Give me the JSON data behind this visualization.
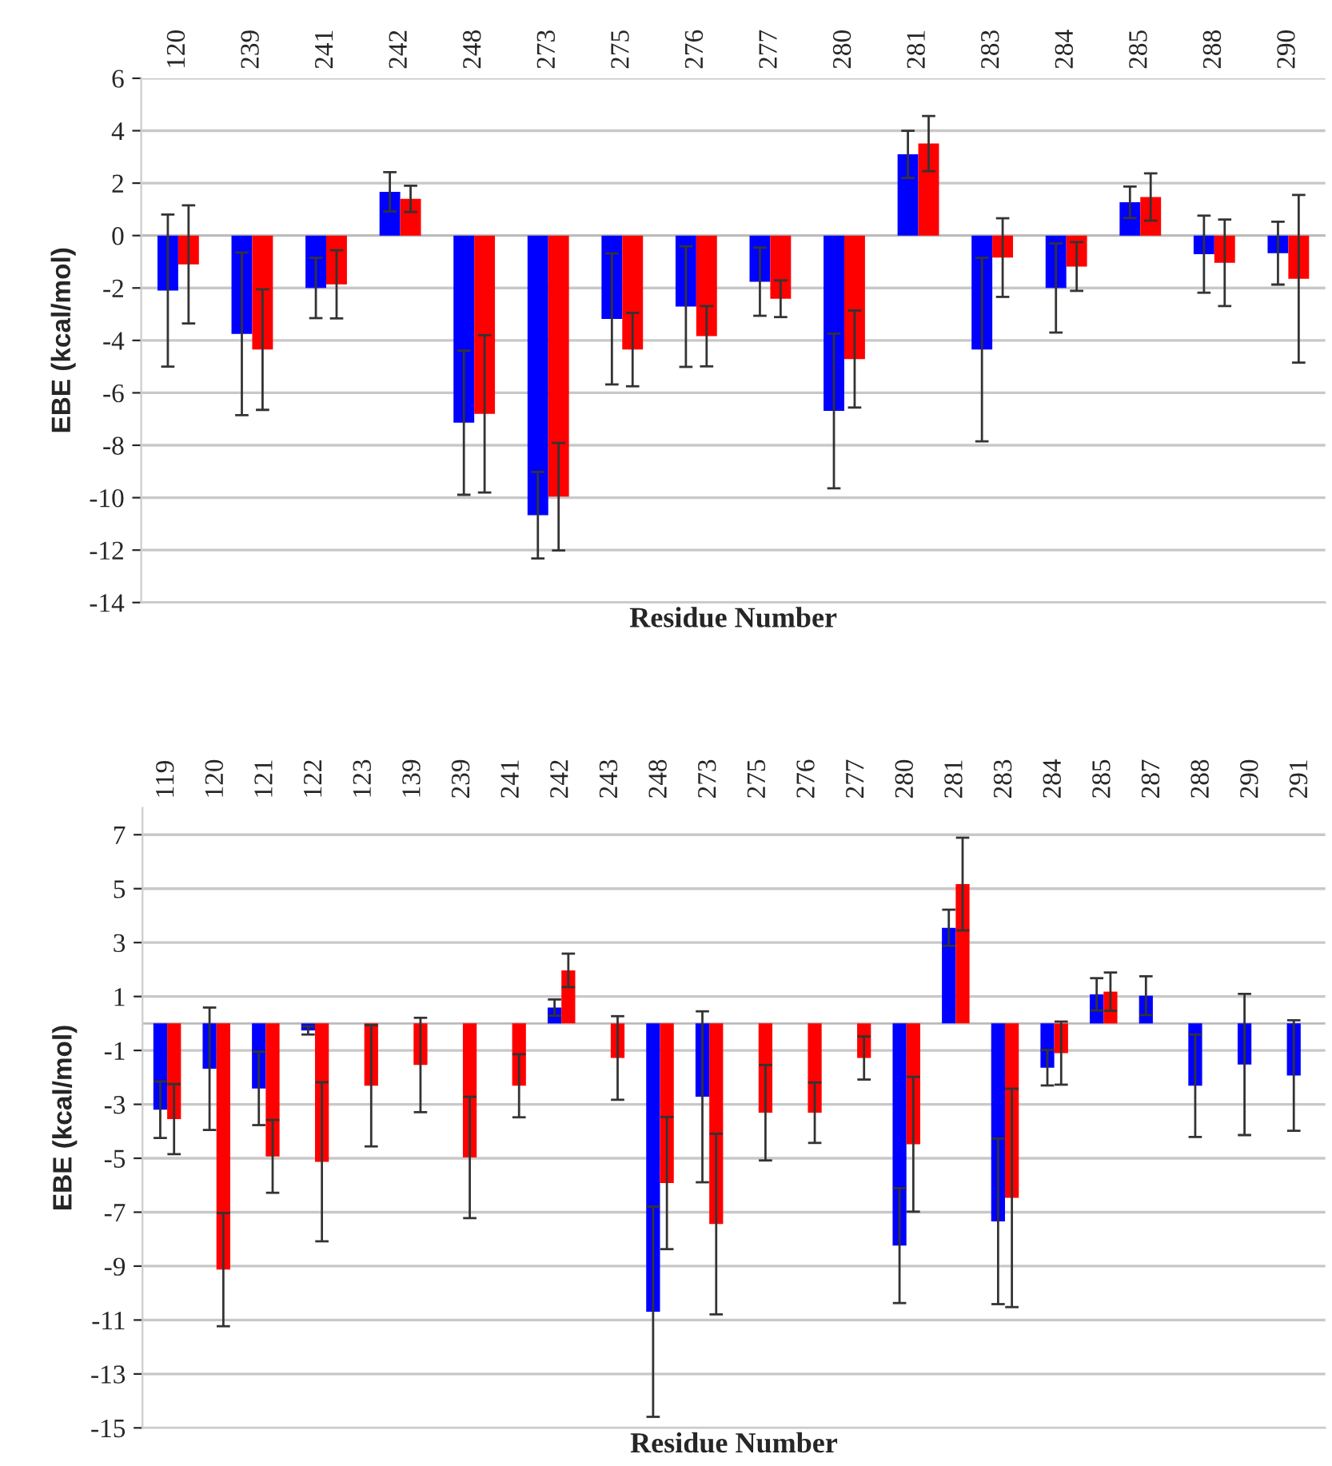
{
  "chart_data": [
    {
      "type": "bar",
      "xlabel": "Residue Number",
      "ylabel": "EBE (kcal/mol)",
      "categories": [
        "120",
        "239",
        "241",
        "242",
        "248",
        "273",
        "275",
        "276",
        "277",
        "280",
        "281",
        "283",
        "284",
        "285",
        "288",
        "290"
      ],
      "series": [
        {
          "color": "#0000ff",
          "values": [
            -2.1,
            -3.75,
            -2.0,
            1.67,
            -7.14,
            -10.67,
            -3.18,
            -2.71,
            -1.76,
            -6.69,
            3.1,
            -4.35,
            -2.0,
            1.27,
            -0.71,
            -0.67
          ],
          "errors": [
            2.9,
            3.1,
            1.15,
            0.75,
            2.75,
            1.65,
            2.5,
            2.3,
            1.3,
            2.95,
            0.9,
            3.5,
            1.7,
            0.6,
            1.47,
            1.2
          ]
        },
        {
          "color": "#ff0000",
          "values": [
            -1.1,
            -4.35,
            -1.86,
            1.4,
            -6.8,
            -9.96,
            -4.35,
            -3.84,
            -2.41,
            -4.71,
            3.51,
            -0.84,
            -1.18,
            1.47,
            -1.04,
            -1.65
          ],
          "errors": [
            2.25,
            2.3,
            1.3,
            0.5,
            3.0,
            2.05,
            1.4,
            1.15,
            0.7,
            1.85,
            1.05,
            1.5,
            0.93,
            0.9,
            1.65,
            3.2
          ]
        }
      ],
      "ylim": [
        -14,
        6
      ],
      "yticks": [
        -14,
        -12,
        -10,
        -8,
        -6,
        -4,
        -2,
        0,
        2,
        4,
        6
      ],
      "grid": "y"
    },
    {
      "type": "bar",
      "xlabel": "Residue Number",
      "ylabel": "EBE (kcal/mol)",
      "categories": [
        "119",
        "120",
        "121",
        "122",
        "123",
        "139",
        "239",
        "241",
        "242",
        "243",
        "248",
        "273",
        "275",
        "276",
        "277",
        "280",
        "281",
        "283",
        "284",
        "285",
        "287",
        "288",
        "290",
        "291"
      ],
      "series": [
        {
          "color": "#0000ff",
          "values": [
            -3.2,
            -1.68,
            -2.41,
            -0.26,
            0,
            0,
            0,
            0,
            0.59,
            0,
            -10.69,
            -2.72,
            0,
            0,
            0,
            -8.24,
            3.55,
            -7.34,
            -1.64,
            1.08,
            1.03,
            -2.31,
            -1.52,
            -1.93
          ],
          "errors": [
            1.05,
            2.27,
            1.36,
            0.15,
            null,
            null,
            null,
            null,
            0.3,
            null,
            3.9,
            3.17,
            null,
            null,
            null,
            2.13,
            0.67,
            3.07,
            0.66,
            0.6,
            0.72,
            1.9,
            2.62,
            2.05
          ]
        },
        {
          "color": "#ff0000",
          "values": [
            -3.55,
            -9.13,
            -4.93,
            -5.13,
            -2.31,
            -1.54,
            -4.97,
            -2.31,
            1.97,
            -1.28,
            -5.92,
            -7.44,
            -3.31,
            -3.31,
            -1.28,
            -4.48,
            5.17,
            -6.47,
            -1.1,
            1.18,
            0,
            0,
            0,
            0
          ],
          "errors": [
            1.3,
            2.1,
            1.35,
            2.95,
            2.25,
            1.75,
            2.25,
            1.17,
            0.62,
            1.55,
            2.45,
            3.35,
            1.77,
            1.12,
            0.8,
            2.5,
            1.72,
            4.05,
            1.17,
            0.71,
            null,
            null,
            null,
            null
          ]
        }
      ],
      "ylim": [
        -15,
        8
      ],
      "yticks": [
        -15,
        -13,
        -11,
        -9,
        -7,
        -5,
        -3,
        -1,
        1,
        3,
        5,
        7
      ],
      "grid": "y"
    }
  ]
}
